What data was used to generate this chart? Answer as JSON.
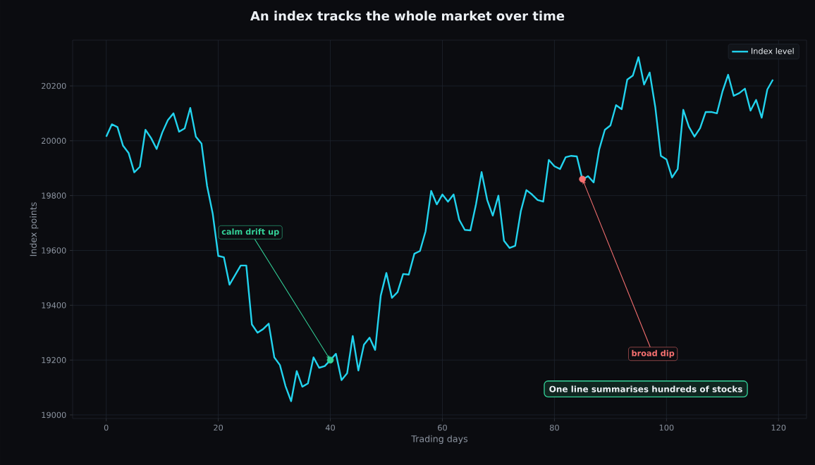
{
  "chart_data": {
    "type": "line",
    "title": "An index tracks the whole market over time",
    "xlabel": "Trading days",
    "ylabel": "Index points",
    "x": [
      0,
      1,
      2,
      3,
      4,
      5,
      6,
      7,
      8,
      9,
      10,
      11,
      12,
      13,
      14,
      15,
      16,
      17,
      18,
      19,
      20,
      21,
      22,
      23,
      24,
      25,
      26,
      27,
      28,
      29,
      30,
      31,
      32,
      33,
      34,
      35,
      36,
      37,
      38,
      39,
      40,
      41,
      42,
      43,
      44,
      45,
      46,
      47,
      48,
      49,
      50,
      51,
      52,
      53,
      54,
      55,
      56,
      57,
      58,
      59,
      60,
      61,
      62,
      63,
      64,
      65,
      66,
      67,
      68,
      69,
      70,
      71,
      72,
      73,
      74,
      75,
      76,
      77,
      78,
      79,
      80,
      81,
      82,
      83,
      84,
      85,
      86,
      87,
      88,
      89,
      90,
      91,
      92,
      93,
      94,
      95,
      96,
      97,
      98,
      99,
      100,
      101,
      102,
      103,
      104,
      105,
      106,
      107,
      108,
      109,
      110,
      111,
      112,
      113,
      114,
      115,
      116,
      117,
      118,
      119
    ],
    "series": [
      {
        "type": "scatter",
        "x": [
          40,
          85
        ],
        "values": [
          19200,
          19860
        ],
        "colors": [
          "#34d399",
          "#f87171"
        ]
      },
      {
        "name": "Index level",
        "color": "#22d3ee",
        "values": [
          20015,
          20060,
          20050,
          19982,
          19955,
          19885,
          19905,
          20040,
          20010,
          19970,
          20030,
          20075,
          20100,
          20033,
          20045,
          20120,
          20015,
          19990,
          19835,
          19735,
          19580,
          19575,
          19475,
          19510,
          19545,
          19545,
          19330,
          19300,
          19313,
          19333,
          19210,
          19182,
          19105,
          19050,
          19160,
          19103,
          19115,
          19210,
          19172,
          19178,
          19200,
          19223,
          19127,
          19152,
          19288,
          19162,
          19256,
          19282,
          19237,
          19435,
          19518,
          19427,
          19448,
          19514,
          19512,
          19588,
          19598,
          19670,
          19817,
          19768,
          19804,
          19778,
          19804,
          19712,
          19675,
          19673,
          19768,
          19886,
          19784,
          19727,
          19800,
          19635,
          19609,
          19617,
          19743,
          19820,
          19804,
          19784,
          19778,
          19930,
          19907,
          19897,
          19940,
          19945,
          19943,
          19858,
          19871,
          19848,
          19969,
          20040,
          20056,
          20130,
          20115,
          20223,
          20238,
          20305,
          20205,
          20249,
          20123,
          19945,
          19932,
          19866,
          19897,
          20113,
          20051,
          20015,
          20046,
          20105,
          20105,
          20100,
          20180,
          20241,
          20164,
          20174,
          20190,
          20110,
          20149,
          20084,
          20187,
          20223
        ]
      }
    ],
    "xlim": [
      -6,
      125
    ],
    "ylim": [
      18987,
      20367
    ],
    "xticks": [
      0,
      20,
      40,
      60,
      80,
      100,
      120
    ],
    "yticks": [
      19000,
      19200,
      19400,
      19600,
      19800,
      20000,
      20200
    ],
    "grid": true,
    "legend": "top right",
    "line_style": "solid",
    "annotations": [
      {
        "text": "calm drift up",
        "x": 40,
        "y": 19200
      },
      {
        "text": "broad dip",
        "x": 85,
        "y": 19860
      },
      "One line summarises hundreds of stocks"
    ]
  }
}
